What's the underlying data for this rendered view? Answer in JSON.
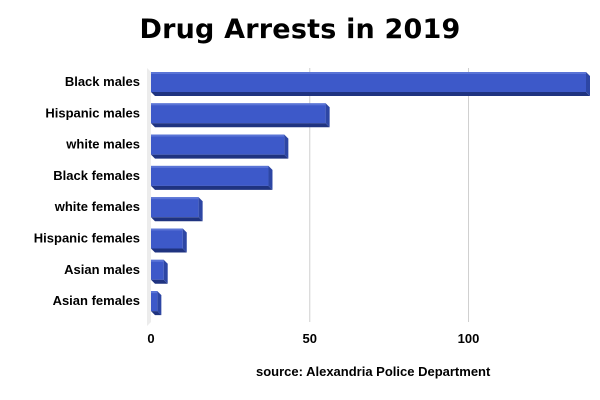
{
  "chart_data": {
    "type": "bar",
    "orientation": "horizontal",
    "title": "Drug Arrests in 2019",
    "source": "source: Alexandria Police Department",
    "categories": [
      "Black males",
      "Hispanic males",
      "white males",
      "Black females",
      "white females",
      "Hispanic females",
      "Asian males",
      "Asian females"
    ],
    "values": [
      137,
      55,
      42,
      37,
      15,
      10,
      4,
      2
    ],
    "xlim": [
      0,
      137
    ],
    "xticks": [
      0,
      50,
      100
    ],
    "xlabel": "",
    "ylabel": "",
    "grid": true,
    "style": "3d",
    "colors": {
      "bar_front": "#3d59c9",
      "bar_top": "#5a74d6",
      "bar_side": "#2d46a4",
      "bar_bottom": "#1f3380",
      "grid": "#cfcfcf",
      "wall": "#ececec"
    }
  }
}
